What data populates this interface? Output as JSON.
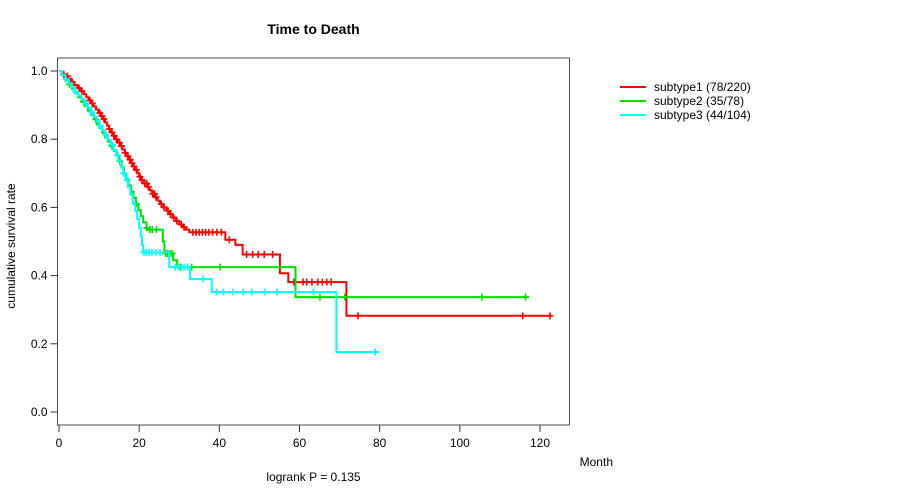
{
  "title": "Time to Death",
  "footer": "logrank P = 0.135",
  "axes": {
    "x_label": "Month",
    "y_label": "cumulative survival rate"
  },
  "legend": {
    "items": [
      {
        "label": "subtype1 (78/220)",
        "color": "#ff0000"
      },
      {
        "label": "subtype2 (35/78)",
        "color": "#00e000"
      },
      {
        "label": "subtype3 (44/104)",
        "color": "#00ffff"
      }
    ]
  },
  "chart_data": {
    "type": "line",
    "variant": "kaplan-meier-step",
    "title": "Time to Death",
    "xlabel": "Month",
    "ylabel": "cumulative survival rate",
    "annotation": "logrank P = 0.135",
    "xlim": [
      0,
      127
    ],
    "ylim": [
      0.0,
      1.04
    ],
    "xticks": [
      0,
      20,
      40,
      60,
      80,
      100,
      120
    ],
    "yticks": [
      0.0,
      0.2,
      0.4,
      0.6,
      0.8,
      1.0
    ],
    "grid": false,
    "legend_position": "right-outside",
    "series": [
      {
        "name": "subtype1",
        "events": 78,
        "n": 220,
        "label": "subtype1 (78/220)",
        "color": "#ff0000",
        "steps": [
          [
            0,
            1.0
          ],
          [
            0.7,
            0.99
          ],
          [
            1.5,
            0.985
          ],
          [
            2.2,
            0.977
          ],
          [
            3,
            0.968
          ],
          [
            3.8,
            0.959
          ],
          [
            4.6,
            0.95
          ],
          [
            5.4,
            0.941
          ],
          [
            6.2,
            0.932
          ],
          [
            6.8,
            0.923
          ],
          [
            7.4,
            0.914
          ],
          [
            8,
            0.905
          ],
          [
            8.6,
            0.896
          ],
          [
            9.2,
            0.887
          ],
          [
            9.8,
            0.877
          ],
          [
            10.4,
            0.868
          ],
          [
            11,
            0.859
          ],
          [
            11.5,
            0.849
          ],
          [
            12,
            0.84
          ],
          [
            12.5,
            0.83
          ],
          [
            13,
            0.82
          ],
          [
            13.5,
            0.81
          ],
          [
            14,
            0.8
          ],
          [
            14.6,
            0.79
          ],
          [
            15.2,
            0.78
          ],
          [
            15.8,
            0.77
          ],
          [
            16.4,
            0.76
          ],
          [
            17,
            0.75
          ],
          [
            17.5,
            0.74
          ],
          [
            18,
            0.73
          ],
          [
            18.5,
            0.72
          ],
          [
            19,
            0.71
          ],
          [
            19.5,
            0.7
          ],
          [
            20,
            0.69
          ],
          [
            20.5,
            0.68
          ],
          [
            21.2,
            0.67
          ],
          [
            22,
            0.66
          ],
          [
            22.6,
            0.65
          ],
          [
            23.2,
            0.64
          ],
          [
            24,
            0.63
          ],
          [
            24.6,
            0.62
          ],
          [
            25.2,
            0.61
          ],
          [
            26,
            0.6
          ],
          [
            26.8,
            0.59
          ],
          [
            27.6,
            0.58
          ],
          [
            28.4,
            0.57
          ],
          [
            29.2,
            0.56
          ],
          [
            30,
            0.55
          ],
          [
            30.8,
            0.542
          ],
          [
            31.6,
            0.535
          ],
          [
            32.5,
            0.527
          ],
          [
            41.5,
            0.505
          ],
          [
            44,
            0.49
          ],
          [
            45.8,
            0.462
          ],
          [
            55.1,
            0.407
          ],
          [
            57.2,
            0.381
          ],
          [
            71.7,
            0.282
          ],
          [
            122.9,
            0.282
          ]
        ],
        "censor_months": [
          1.2,
          2.1,
          3.3,
          5,
          5.7,
          7.7,
          8.3,
          10.2,
          10.7,
          11.2,
          12.6,
          13.2,
          13.7,
          14.3,
          15.1,
          15.6,
          16.5,
          17.2,
          17.7,
          18.2,
          18.7,
          19.3,
          20.2,
          20.7,
          21.4,
          21.9,
          22.3,
          23.4,
          23.8,
          24.2,
          25.5,
          26.2,
          27.2,
          27.8,
          28.6,
          29.4,
          30.5,
          31.2,
          33.4,
          34.2,
          35,
          35.8,
          36.6,
          37.4,
          38.3,
          39.4,
          40.5,
          42.5,
          46.8,
          48.3,
          49.7,
          51.2,
          53.3,
          58.6,
          60.9,
          61.8,
          63.1,
          64.6,
          65.7,
          66.8,
          67.9,
          74.6,
          115.7,
          122.5
        ]
      },
      {
        "name": "subtype2",
        "events": 35,
        "n": 78,
        "label": "subtype2 (35/78)",
        "color": "#00e000",
        "steps": [
          [
            0,
            1.0
          ],
          [
            0.8,
            0.987
          ],
          [
            1.6,
            0.974
          ],
          [
            2.4,
            0.961
          ],
          [
            3.2,
            0.948
          ],
          [
            4,
            0.936
          ],
          [
            4.8,
            0.923
          ],
          [
            5.6,
            0.91
          ],
          [
            6.4,
            0.897
          ],
          [
            7.2,
            0.884
          ],
          [
            8,
            0.871
          ],
          [
            8.7,
            0.858
          ],
          [
            9.4,
            0.845
          ],
          [
            10.1,
            0.832
          ],
          [
            10.8,
            0.819
          ],
          [
            11.5,
            0.806
          ],
          [
            12.2,
            0.793
          ],
          [
            12.9,
            0.78
          ],
          [
            13.6,
            0.766
          ],
          [
            14.3,
            0.752
          ],
          [
            15,
            0.735
          ],
          [
            15.6,
            0.718
          ],
          [
            16.2,
            0.7
          ],
          [
            16.8,
            0.682
          ],
          [
            17.4,
            0.664
          ],
          [
            18,
            0.646
          ],
          [
            18.6,
            0.628
          ],
          [
            19.2,
            0.61
          ],
          [
            19.8,
            0.592
          ],
          [
            20.4,
            0.574
          ],
          [
            21,
            0.556
          ],
          [
            21.8,
            0.54
          ],
          [
            22.2,
            0.535
          ],
          [
            25.9,
            0.5
          ],
          [
            26.3,
            0.465
          ],
          [
            28.5,
            0.445
          ],
          [
            29.5,
            0.425
          ],
          [
            59,
            0.337
          ],
          [
            117.2,
            0.337
          ]
        ],
        "censor_months": [
          2.6,
          6.1,
          9.2,
          13.2,
          15.2,
          19.3,
          21.9,
          22.7,
          23.3,
          24.3,
          26.6,
          27.1,
          27.7,
          28.2,
          30.3,
          31.3,
          33.1,
          40.2,
          65.1,
          71.3,
          105.5,
          116.4
        ]
      },
      {
        "name": "subtype3",
        "events": 44,
        "n": 104,
        "label": "subtype3 (44/104)",
        "color": "#00ffff",
        "steps": [
          [
            0,
            1.0
          ],
          [
            0.8,
            0.988
          ],
          [
            1.6,
            0.976
          ],
          [
            2.4,
            0.964
          ],
          [
            3.2,
            0.952
          ],
          [
            4,
            0.94
          ],
          [
            4.8,
            0.928
          ],
          [
            5.6,
            0.916
          ],
          [
            6.4,
            0.904
          ],
          [
            7.2,
            0.892
          ],
          [
            8,
            0.879
          ],
          [
            8.7,
            0.866
          ],
          [
            9.4,
            0.853
          ],
          [
            10.1,
            0.84
          ],
          [
            10.8,
            0.826
          ],
          [
            11.5,
            0.812
          ],
          [
            12.2,
            0.798
          ],
          [
            12.9,
            0.784
          ],
          [
            13.6,
            0.768
          ],
          [
            14.2,
            0.752
          ],
          [
            14.8,
            0.736
          ],
          [
            15.4,
            0.718
          ],
          [
            16,
            0.7
          ],
          [
            16.6,
            0.68
          ],
          [
            17.2,
            0.66
          ],
          [
            17.8,
            0.638
          ],
          [
            18.4,
            0.614
          ],
          [
            19,
            0.59
          ],
          [
            19.5,
            0.566
          ],
          [
            20,
            0.54
          ],
          [
            20.4,
            0.515
          ],
          [
            20.7,
            0.49
          ],
          [
            21,
            0.468
          ],
          [
            27.5,
            0.425
          ],
          [
            32.7,
            0.39
          ],
          [
            38.1,
            0.352
          ],
          [
            69.2,
            0.176
          ],
          [
            80,
            0.176
          ]
        ],
        "censor_months": [
          1.7,
          4.1,
          6.7,
          8.2,
          10.2,
          11.7,
          13.3,
          14.7,
          16.1,
          17.1,
          21.2,
          21.8,
          22.5,
          23.2,
          24.2,
          25.2,
          29,
          29.8,
          30.6,
          31.3,
          32.1,
          36,
          39.3,
          41,
          43.4,
          45.9,
          48.1,
          51.4,
          54.4,
          63.5,
          78.9
        ]
      }
    ]
  }
}
